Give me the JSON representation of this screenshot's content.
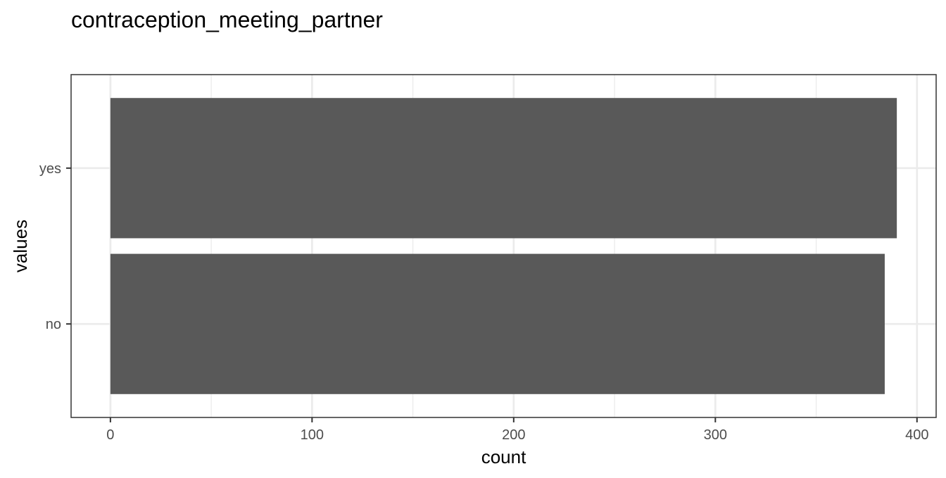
{
  "chart_data": {
    "type": "bar",
    "orientation": "horizontal",
    "title": "contraception_meeting_partner",
    "xlabel": "count",
    "ylabel": "values",
    "categories": [
      "no",
      "yes"
    ],
    "values": [
      384,
      390
    ],
    "xlim": [
      -19.5,
      409.5
    ],
    "xticks": [
      0,
      100,
      200,
      300,
      400
    ],
    "grid": true,
    "legend": "none",
    "bar_color": "#595959",
    "grid_color": "#ebebeb",
    "panel_border_color": "#333333"
  }
}
